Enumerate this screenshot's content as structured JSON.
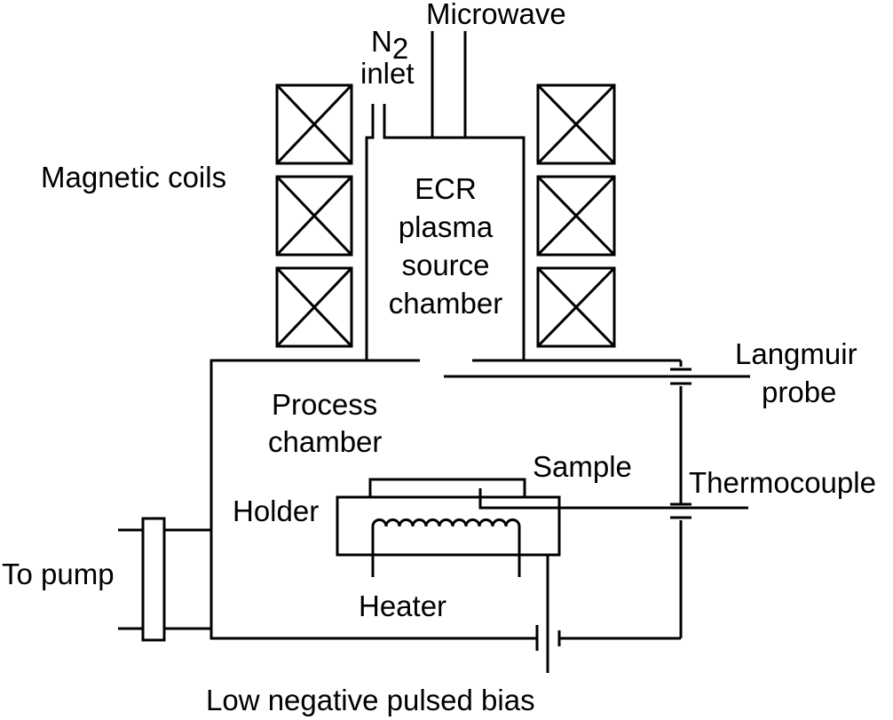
{
  "labels": {
    "n2_main": "N",
    "n2_sub": "2",
    "inlet": "inlet",
    "microwave": "Microwave",
    "magnetic_coils": "Magnetic coils",
    "ecr_line1": "ECR",
    "ecr_line2": "plasma",
    "ecr_line3": "source",
    "ecr_line4": "chamber",
    "langmuir_line1": "Langmuir",
    "langmuir_line2": "probe",
    "process_line1": "Process",
    "process_line2": "chamber",
    "sample": "Sample",
    "thermocouple": "Thermocouple",
    "holder": "Holder",
    "to_pump": "To pump",
    "heater": "Heater",
    "bias": "Low negative pulsed bias"
  },
  "colors": {
    "line": "#000000",
    "background": "#ffffff"
  }
}
